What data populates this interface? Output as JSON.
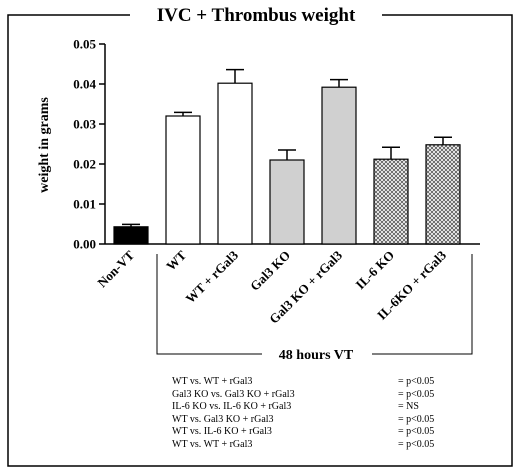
{
  "chart_data": {
    "type": "bar",
    "title": "IVC + Thrombus weight",
    "ylabel": "weight in grams",
    "ylim": [
      0,
      0.05
    ],
    "yticks": [
      "0.00",
      "0.01",
      "0.02",
      "0.03",
      "0.04",
      "0.05"
    ],
    "categories": [
      "Non-VT",
      "WT",
      "WT + rGal3",
      "Gal3 KO",
      "Gal3 KO + rGal3",
      "IL-6 KO",
      "IL-6KO + rGal3"
    ],
    "values": [
      0.0043,
      0.032,
      0.0402,
      0.021,
      0.0392,
      0.0212,
      0.0248
    ],
    "errors": [
      0.0006,
      0.0009,
      0.0034,
      0.0025,
      0.0019,
      0.003,
      0.0019
    ],
    "bar_styles": [
      "solid",
      "open",
      "open",
      "gray",
      "gray",
      "hatched",
      "hatched"
    ],
    "group_label": "48 hours VT",
    "colors": {
      "solid": "#000000",
      "open": "#ffffff",
      "gray": "#d0d0d0",
      "hatch_line": "#555555"
    }
  },
  "stats": [
    {
      "comparison": "WT vs. WT + rGal3",
      "result": "= p<0.05"
    },
    {
      "comparison": "Gal3 KO vs. Gal3 KO + rGal3",
      "result": "= p<0.05"
    },
    {
      "comparison": "IL-6 KO vs. IL-6 KO + rGal3",
      "result": "= NS"
    },
    {
      "comparison": "WT vs. Gal3 KO + rGal3",
      "result": "= p<0.05"
    },
    {
      "comparison": "WT vs. IL-6 KO + rGal3",
      "result": "= p<0.05"
    },
    {
      "comparison": "WT vs. WT + rGal3",
      "result": "= p<0.05"
    }
  ]
}
